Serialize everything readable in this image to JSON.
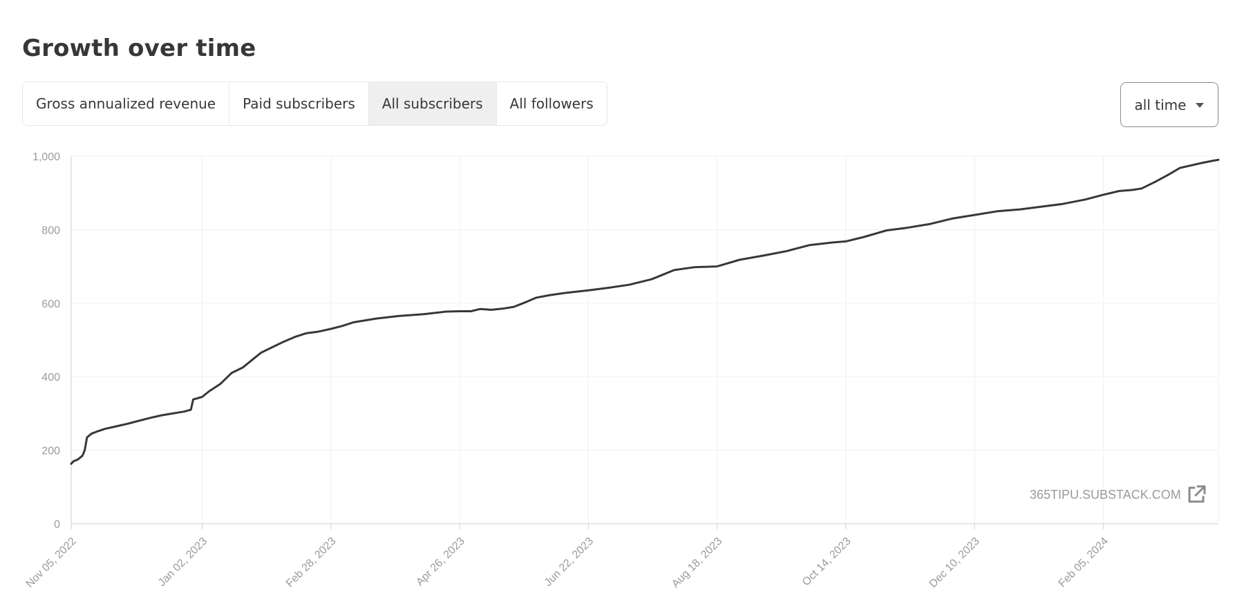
{
  "header": {
    "title": "Growth over time"
  },
  "tabs": [
    {
      "label": "Gross annualized revenue",
      "active": false
    },
    {
      "label": "Paid subscribers",
      "active": false
    },
    {
      "label": "All subscribers",
      "active": true
    },
    {
      "label": "All followers",
      "active": false
    }
  ],
  "range_select": {
    "value": "all time",
    "icon": "chevron-down-icon"
  },
  "watermark": {
    "text": "365TIPU.SUBSTACK.COM",
    "icon": "external-link-icon"
  },
  "colors": {
    "line": "#363737",
    "grid": "#f0f0f0",
    "axis": "#cfcfcf",
    "tick_text": "#9a9a9a",
    "active_tab": "#efefef"
  },
  "chart_data": {
    "type": "line",
    "title": "",
    "xlabel": "",
    "ylabel": "",
    "xlim": [
      "2022-11-05",
      "2024-03-27"
    ],
    "ylim": [
      0,
      1000
    ],
    "grid": true,
    "y_ticks": [
      0,
      200,
      400,
      600,
      800,
      1000
    ],
    "y_tick_labels": [
      "0",
      "200",
      "400",
      "600",
      "800",
      "1,000"
    ],
    "x_ticks": [
      "2022-11-05",
      "2023-01-02",
      "2023-02-28",
      "2023-04-26",
      "2023-06-22",
      "2023-08-18",
      "2023-10-14",
      "2023-12-10",
      "2024-02-05"
    ],
    "x_tick_labels": [
      "Nov 05, 2022",
      "Jan 02, 2023",
      "Feb 28, 2023",
      "Apr 26, 2023",
      "Jun 22, 2023",
      "Aug 18, 2023",
      "Oct 14, 2023",
      "Dec 10, 2023",
      "Feb 05, 2024"
    ],
    "series": [
      {
        "name": "",
        "x": [
          "2022-11-05",
          "2022-11-06",
          "2022-11-08",
          "2022-11-10",
          "2022-11-11",
          "2022-11-12",
          "2022-11-14",
          "2022-11-17",
          "2022-11-20",
          "2022-11-25",
          "2022-11-30",
          "2022-12-05",
          "2022-12-10",
          "2022-12-15",
          "2022-12-20",
          "2022-12-25",
          "2022-12-28",
          "2022-12-29",
          "2023-01-02",
          "2023-01-05",
          "2023-01-10",
          "2023-01-15",
          "2023-01-20",
          "2023-01-25",
          "2023-01-28",
          "2023-02-02",
          "2023-02-07",
          "2023-02-12",
          "2023-02-17",
          "2023-02-22",
          "2023-02-28",
          "2023-03-05",
          "2023-03-10",
          "2023-03-20",
          "2023-03-30",
          "2023-04-10",
          "2023-04-20",
          "2023-04-26",
          "2023-05-01",
          "2023-05-05",
          "2023-05-10",
          "2023-05-15",
          "2023-05-20",
          "2023-05-25",
          "2023-05-30",
          "2023-06-05",
          "2023-06-12",
          "2023-06-22",
          "2023-07-01",
          "2023-07-10",
          "2023-07-20",
          "2023-07-30",
          "2023-08-08",
          "2023-08-18",
          "2023-08-28",
          "2023-09-08",
          "2023-09-18",
          "2023-09-28",
          "2023-10-08",
          "2023-10-14",
          "2023-10-22",
          "2023-11-01",
          "2023-11-10",
          "2023-11-20",
          "2023-11-30",
          "2023-12-10",
          "2023-12-20",
          "2023-12-30",
          "2024-01-08",
          "2024-01-18",
          "2024-01-28",
          "2024-02-05",
          "2024-02-12",
          "2024-02-18",
          "2024-02-22",
          "2024-02-28",
          "2024-03-05",
          "2024-03-10",
          "2024-03-15",
          "2024-03-20",
          "2024-03-25",
          "2024-03-27"
        ],
        "values": [
          163,
          170,
          175,
          185,
          200,
          235,
          245,
          252,
          258,
          265,
          272,
          280,
          288,
          295,
          300,
          305,
          310,
          338,
          345,
          360,
          380,
          410,
          425,
          450,
          465,
          480,
          495,
          508,
          518,
          522,
          530,
          538,
          548,
          558,
          565,
          570,
          577,
          578,
          578,
          584,
          582,
          585,
          590,
          602,
          615,
          622,
          628,
          635,
          642,
          650,
          665,
          690,
          698,
          700,
          718,
          730,
          742,
          758,
          765,
          768,
          780,
          798,
          805,
          815,
          830,
          840,
          850,
          855,
          862,
          870,
          882,
          895,
          905,
          908,
          912,
          930,
          950,
          968,
          975,
          982,
          988,
          990
        ]
      }
    ]
  }
}
